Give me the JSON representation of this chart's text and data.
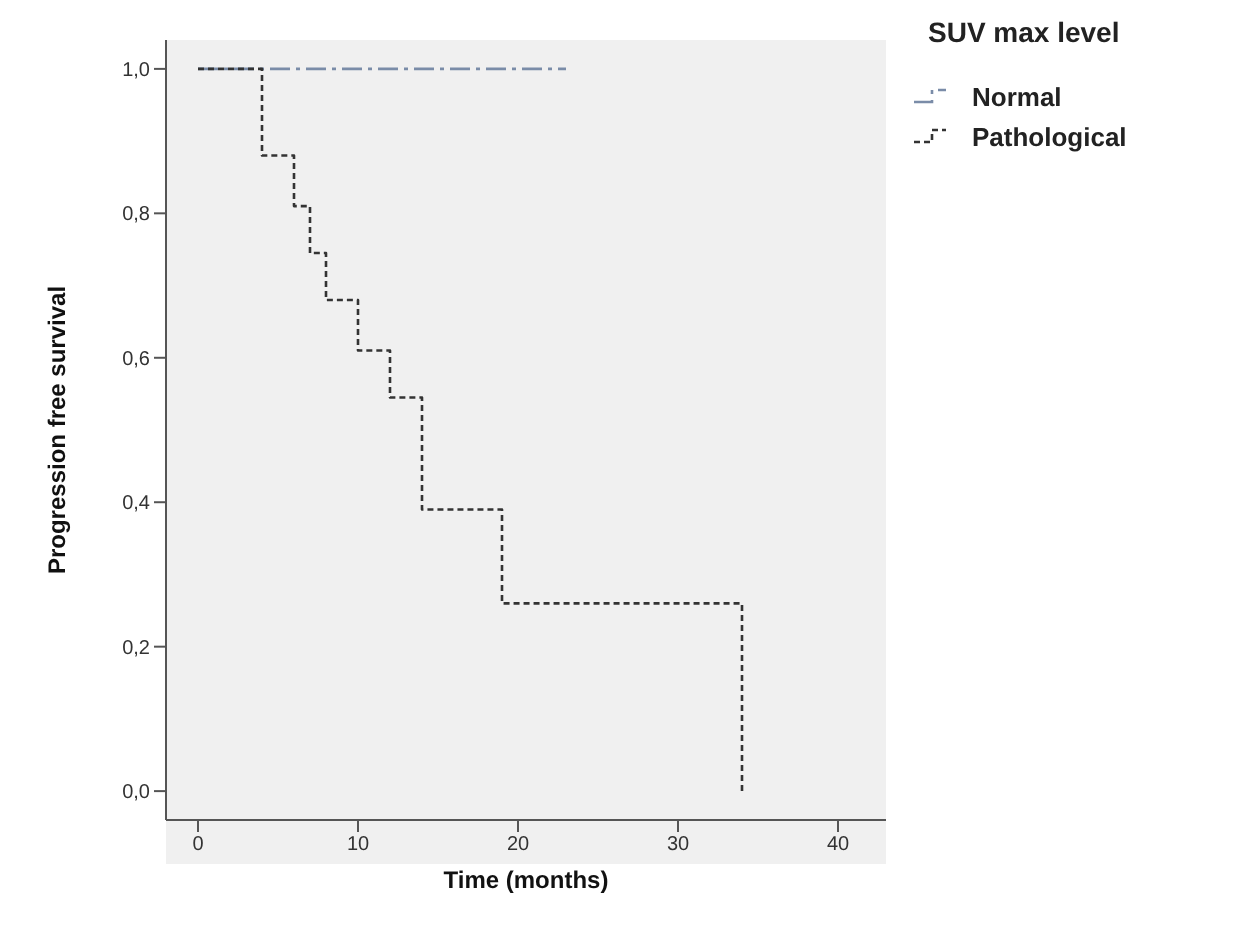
{
  "chart_data": {
    "type": "step",
    "xlabel": "Time (months)",
    "ylabel": "Progression free survival",
    "legend_title": "SUV max level",
    "legend": "top right",
    "grid": false,
    "marker": "none",
    "xlim": [
      -2,
      43
    ],
    "xticks": [
      0,
      10,
      20,
      30,
      40
    ],
    "ylim": [
      -0.04,
      1.04
    ],
    "yticks": [
      {
        "value": 0,
        "label": "0,0"
      },
      {
        "value": 0.2,
        "label": "0,2"
      },
      {
        "value": 0.4,
        "label": "0,4"
      },
      {
        "value": 0.6,
        "label": "0,6"
      },
      {
        "value": 0.8,
        "label": "0,8"
      },
      {
        "value": 1,
        "label": "1,0"
      }
    ],
    "series": [
      {
        "name": "Normal",
        "color": "#7a8ca8",
        "line_style": "dashed",
        "x": [
          0,
          23
        ],
        "values": [
          1,
          1
        ]
      },
      {
        "name": "Pathological",
        "color": "#333333",
        "line_style": "dotted",
        "x": [
          0,
          4,
          6,
          7,
          8,
          10,
          12,
          14,
          19,
          34
        ],
        "values": [
          1,
          0.88,
          0.81,
          0.745,
          0.68,
          0.61,
          0.545,
          0.39,
          0.26,
          0
        ]
      }
    ]
  }
}
